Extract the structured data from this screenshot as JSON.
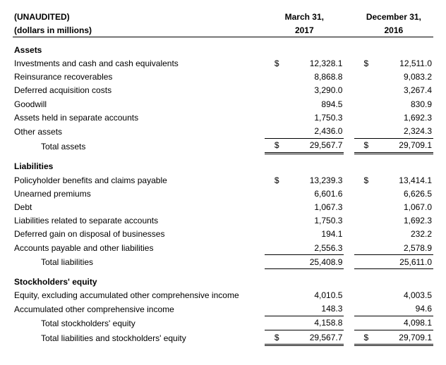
{
  "header": {
    "unaudited": "(UNAUDITED)",
    "units": "(dollars in millions)",
    "col1_l1": "March 31,",
    "col1_l2": "2017",
    "col2_l1": "December 31,",
    "col2_l2": "2016"
  },
  "cur": "$",
  "sections": {
    "assets": {
      "title": "Assets",
      "rows": [
        {
          "label": "Investments and cash and cash equivalents",
          "c1_cur": true,
          "c1": "12,328.1",
          "c2_cur": true,
          "c2": "12,511.0"
        },
        {
          "label": "Reinsurance recoverables",
          "c1": "8,868.8",
          "c2": "9,083.2"
        },
        {
          "label": "Deferred acquisition costs",
          "c1": "3,290.0",
          "c2": "3,267.4"
        },
        {
          "label": "Goodwill",
          "c1": "894.5",
          "c2": "830.9"
        },
        {
          "label": "Assets held in separate accounts",
          "c1": "1,750.3",
          "c2": "1,692.3"
        },
        {
          "label": "Other assets",
          "c1": "2,436.0",
          "c2": "2,324.3"
        }
      ],
      "total": {
        "label": "Total assets",
        "c1_cur": true,
        "c1": "29,567.7",
        "c2_cur": true,
        "c2": "29,709.1"
      }
    },
    "liab": {
      "title": "Liabilities",
      "rows": [
        {
          "label": "Policyholder benefits and claims payable",
          "c1_cur": true,
          "c1": "13,239.3",
          "c2_cur": true,
          "c2": "13,414.1"
        },
        {
          "label": "Unearned premiums",
          "c1": "6,601.6",
          "c2": "6,626.5"
        },
        {
          "label": "Debt",
          "c1": "1,067.3",
          "c2": "1,067.0"
        },
        {
          "label": "Liabilities related to separate accounts",
          "c1": "1,750.3",
          "c2": "1,692.3"
        },
        {
          "label": "Deferred gain on disposal of businesses",
          "c1": "194.1",
          "c2": "232.2"
        },
        {
          "label": "Accounts payable and other liabilities",
          "c1": "2,556.3",
          "c2": "2,578.9"
        }
      ],
      "total": {
        "label": "Total liabilities",
        "c1": "25,408.9",
        "c2": "25,611.0"
      }
    },
    "se": {
      "title": "Stockholders' equity",
      "rows": [
        {
          "label": "Equity, excluding accumulated other comprehensive income",
          "c1": "4,010.5",
          "c2": "4,003.5"
        },
        {
          "label": "Accumulated other comprehensive income",
          "c1": "148.3",
          "c2": "94.6"
        }
      ],
      "subtotal": {
        "label": "Total stockholders' equity",
        "c1": "4,158.8",
        "c2": "4,098.1"
      },
      "grand": {
        "label": "Total liabilities and stockholders' equity",
        "c1_cur": true,
        "c1": "29,567.7",
        "c2_cur": true,
        "c2": "29,709.1"
      }
    }
  }
}
